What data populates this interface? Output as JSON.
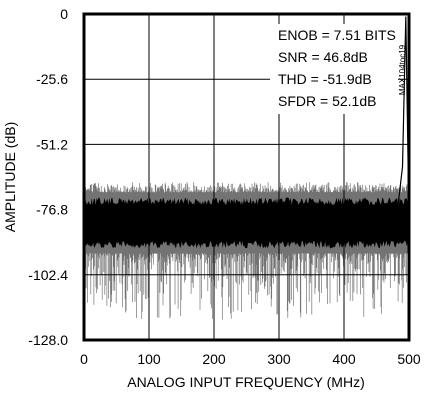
{
  "chart_data": {
    "type": "line",
    "xlabel": "ANALOG INPUT FREQUENCY (MHz)",
    "ylabel": "AMPLITUDE (dB)",
    "xlim": [
      0,
      500
    ],
    "ylim": [
      -128.0,
      0
    ],
    "x_ticks": [
      "0",
      "100",
      "200",
      "300",
      "400",
      "500"
    ],
    "x_tick_values": [
      0,
      100,
      200,
      300,
      400,
      500
    ],
    "y_ticks": [
      "0",
      "-25.6",
      "-51.2",
      "-76.8",
      "-102.4",
      "-128.0"
    ],
    "y_tick_values": [
      0,
      -25.6,
      -51.2,
      -76.8,
      -102.4,
      -128.0
    ],
    "grid": true,
    "annotations": [
      "ENOB = 7.51 BITS",
      "SNR = 46.8dB",
      "THD = -51.9dB",
      "SFDR = 52.1dB"
    ],
    "figure_code": "MAX104toc19",
    "series": [
      {
        "noise_floor_db": -82,
        "noise_band_db": [
          -92,
          -72
        ],
        "spur_extremes_db": [
          -66,
          -120
        ],
        "x": [
          0,
          20,
          40,
          60,
          80,
          100,
          120,
          140,
          160,
          180,
          200,
          220,
          240,
          260,
          280,
          300,
          320,
          340,
          360,
          380,
          400,
          420,
          440,
          460,
          480,
          490,
          495,
          500
        ],
        "values": [
          -82,
          -83,
          -81,
          -84,
          -82,
          -83,
          -81,
          -82,
          -84,
          -82,
          -83,
          -81,
          -82,
          -83,
          -82,
          -84,
          -82,
          -81,
          -83,
          -82,
          -84,
          -82,
          -81,
          -83,
          -82,
          -60,
          -1,
          -82
        ]
      }
    ],
    "color": "#000000"
  }
}
